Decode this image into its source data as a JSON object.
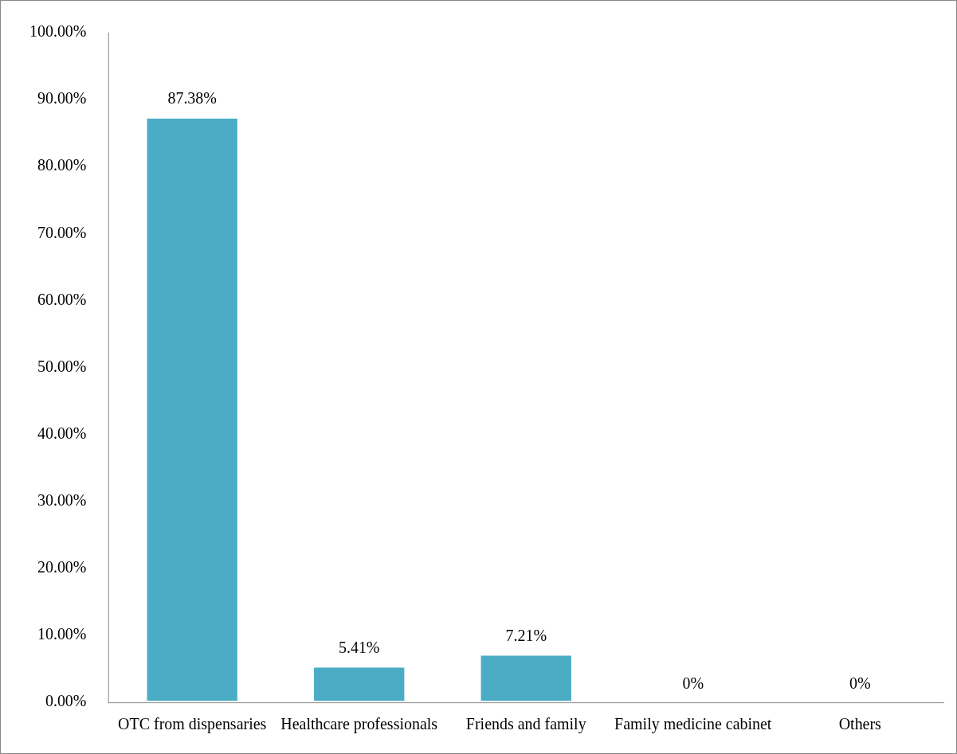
{
  "chart_data": {
    "type": "bar",
    "categories": [
      "OTC from dispensaries",
      "Healthcare professionals",
      "Friends and family",
      "Family medicine cabinet",
      "Others"
    ],
    "values": [
      87.38,
      5.41,
      7.21,
      0,
      0
    ],
    "value_labels": [
      "87.38%",
      "5.41%",
      "7.21%",
      "0%",
      "0%"
    ],
    "color": "#4bacc6",
    "ylim": [
      0,
      100
    ],
    "yticks": [
      {
        "value": 0,
        "label": "0.00%"
      },
      {
        "value": 10,
        "label": "10.00%"
      },
      {
        "value": 20,
        "label": "20.00%"
      },
      {
        "value": 30,
        "label": "30.00%"
      },
      {
        "value": 40,
        "label": "40.00%"
      },
      {
        "value": 50,
        "label": "50.00%"
      },
      {
        "value": 60,
        "label": "60.00%"
      },
      {
        "value": 70,
        "label": "70.00%"
      },
      {
        "value": 80,
        "label": "80.00%"
      },
      {
        "value": 90,
        "label": "90.00%"
      },
      {
        "value": 100,
        "label": "100.00%"
      }
    ],
    "grid": false,
    "legend": false
  }
}
